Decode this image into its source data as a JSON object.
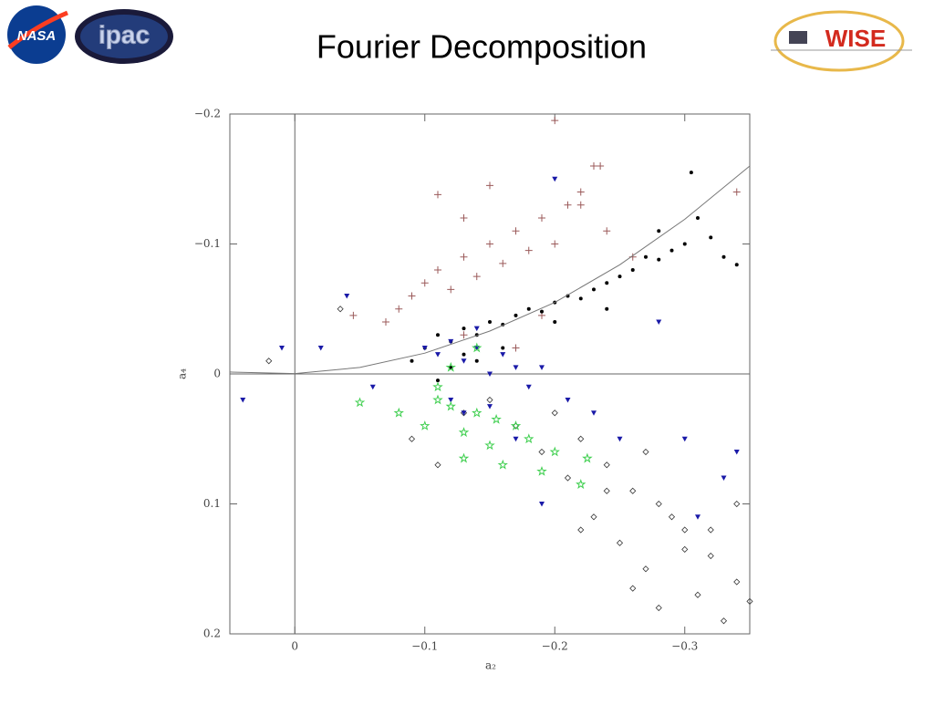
{
  "header": {
    "title": "Fourier Decomposition",
    "logos": [
      "NASA",
      "ipac",
      "WISE"
    ]
  },
  "chart_data": {
    "type": "scatter",
    "x_label": "a₂",
    "y_label": "a₄",
    "xlim": [
      0.05,
      -0.35
    ],
    "ylim": [
      0.2,
      -0.2
    ],
    "xticks": [
      0,
      {
        "value": -0.1,
        "label": "−0.1"
      },
      {
        "value": -0.2,
        "label": "−0.2"
      },
      {
        "value": -0.3,
        "label": "−0.3"
      }
    ],
    "yticks": [
      {
        "value": -0.2,
        "label": "−0.2"
      },
      {
        "value": -0.1,
        "label": "−0.1"
      },
      0,
      0.1,
      0.2
    ],
    "zero_lines": true,
    "series": [
      {
        "mode": "markers",
        "marker": "diamond",
        "color": "#333333",
        "x": [
          -0.2,
          -0.22,
          -0.24,
          -0.26,
          -0.28,
          -0.3,
          -0.32,
          -0.34,
          -0.25,
          -0.27,
          -0.29,
          -0.31,
          -0.33,
          -0.23,
          -0.21,
          -0.19,
          -0.17,
          -0.15,
          -0.13,
          -0.11,
          -0.09,
          -0.35,
          -0.28,
          -0.3,
          -0.26,
          -0.24,
          -0.32,
          -0.34,
          -0.22,
          -0.27,
          0.02,
          -0.035
        ],
        "y": [
          0.03,
          0.05,
          0.07,
          0.09,
          0.1,
          0.12,
          0.14,
          0.16,
          0.13,
          0.15,
          0.11,
          0.17,
          0.19,
          0.11,
          0.08,
          0.06,
          0.04,
          0.02,
          0.03,
          0.07,
          0.05,
          0.175,
          0.18,
          0.135,
          0.165,
          0.09,
          0.12,
          0.1,
          0.12,
          0.06,
          -0.01,
          -0.05
        ]
      },
      {
        "mode": "markers",
        "marker": "plus",
        "color": "#9b5a5a",
        "x": [
          -0.08,
          -0.09,
          -0.1,
          -0.11,
          -0.12,
          -0.13,
          -0.14,
          -0.15,
          -0.16,
          -0.17,
          -0.18,
          -0.19,
          -0.2,
          -0.21,
          -0.22,
          -0.23,
          -0.11,
          -0.13,
          -0.15,
          -0.2,
          -0.22,
          -0.24,
          -0.26,
          -0.19,
          -0.235,
          -0.34,
          -0.045,
          -0.13,
          -0.17,
          -0.07
        ],
        "y": [
          -0.05,
          -0.06,
          -0.07,
          -0.08,
          -0.065,
          -0.09,
          -0.075,
          -0.1,
          -0.085,
          -0.11,
          -0.095,
          -0.12,
          -0.1,
          -0.13,
          -0.14,
          -0.16,
          -0.138,
          -0.12,
          -0.145,
          -0.195,
          -0.13,
          -0.11,
          -0.09,
          -0.045,
          -0.16,
          -0.14,
          -0.045,
          -0.03,
          -0.02,
          -0.04
        ]
      },
      {
        "mode": "markers",
        "marker": "dot",
        "color": "#000000",
        "x": [
          -0.1,
          -0.11,
          -0.12,
          -0.13,
          -0.14,
          -0.15,
          -0.16,
          -0.17,
          -0.18,
          -0.19,
          -0.2,
          -0.21,
          -0.22,
          -0.23,
          -0.24,
          -0.25,
          -0.26,
          -0.27,
          -0.28,
          -0.29,
          -0.3,
          -0.31,
          -0.32,
          -0.33,
          -0.34,
          -0.12,
          -0.14,
          -0.16,
          -0.2,
          -0.24,
          -0.28,
          -0.305,
          -0.09,
          -0.11,
          -0.13
        ],
        "y": [
          -0.02,
          -0.03,
          -0.025,
          -0.035,
          -0.03,
          -0.04,
          -0.038,
          -0.045,
          -0.05,
          -0.048,
          -0.055,
          -0.06,
          -0.058,
          -0.065,
          -0.07,
          -0.075,
          -0.08,
          -0.09,
          -0.088,
          -0.095,
          -0.1,
          -0.12,
          -0.105,
          -0.09,
          -0.084,
          -0.005,
          -0.01,
          -0.02,
          -0.04,
          -0.05,
          -0.11,
          -0.155,
          -0.01,
          0.005,
          -0.015
        ]
      },
      {
        "mode": "markers",
        "marker": "triangle",
        "color": "#1a1aa8",
        "x": [
          -0.1,
          -0.11,
          -0.12,
          -0.13,
          -0.14,
          -0.15,
          -0.16,
          -0.17,
          -0.18,
          -0.12,
          -0.13,
          -0.15,
          -0.19,
          -0.21,
          -0.25,
          -0.28,
          -0.31,
          -0.33,
          -0.04,
          -0.02,
          0.01,
          0.04,
          -0.06,
          -0.2,
          -0.3,
          -0.34,
          -0.17,
          -0.23,
          -0.14,
          -0.19
        ],
        "y": [
          -0.02,
          -0.015,
          -0.025,
          -0.01,
          -0.02,
          0.0,
          -0.015,
          -0.005,
          0.01,
          0.02,
          0.03,
          0.025,
          -0.005,
          0.02,
          0.05,
          -0.04,
          0.11,
          0.08,
          -0.06,
          -0.02,
          -0.02,
          0.02,
          0.01,
          -0.15,
          0.05,
          0.06,
          0.05,
          0.03,
          -0.035,
          0.1
        ]
      },
      {
        "mode": "markers",
        "marker": "star",
        "color": "#3fcf4f",
        "x": [
          -0.05,
          -0.08,
          -0.1,
          -0.11,
          -0.12,
          -0.13,
          -0.14,
          -0.15,
          -0.16,
          -0.17,
          -0.18,
          -0.2,
          -0.22,
          -0.11,
          -0.13,
          -0.155,
          -0.19,
          -0.225,
          -0.12,
          -0.14
        ],
        "y": [
          0.022,
          0.03,
          0.04,
          0.02,
          0.025,
          0.045,
          0.03,
          0.055,
          0.07,
          0.04,
          0.05,
          0.06,
          0.085,
          0.01,
          0.065,
          0.035,
          0.075,
          0.065,
          -0.005,
          -0.02
        ]
      },
      {
        "mode": "line",
        "color": "#777777",
        "x": [
          0.05,
          0,
          -0.05,
          -0.1,
          -0.15,
          -0.2,
          -0.25,
          -0.3,
          -0.35
        ],
        "y": [
          -0.0015,
          -0.0003,
          -0.005,
          -0.016,
          -0.033,
          -0.055,
          -0.084,
          -0.119,
          -0.16
        ]
      }
    ]
  }
}
